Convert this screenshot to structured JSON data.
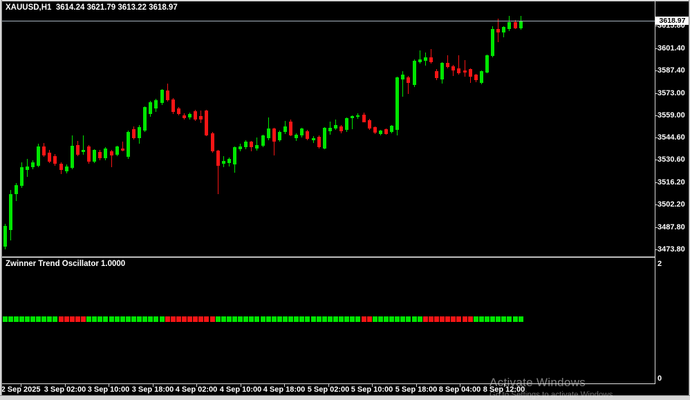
{
  "window": {
    "os_watermark_line1": "Activate Windows",
    "os_watermark_line2": "Go to Settings to activate Windows"
  },
  "chart": {
    "title": "XAUUSD,H1  3614.24 3621.79 3613.22 3618.97"
  },
  "indicator": {
    "label": "Zwinner Trend Oscillator 1.0000"
  },
  "price_axis": {
    "current": "3618.97",
    "labels": [
      "3615.80",
      "3601.40",
      "3587.40",
      "3573.00",
      "3559.00",
      "3544.60",
      "3530.60",
      "3516.20",
      "3502.20",
      "3487.80",
      "3473.80"
    ],
    "sub_top": "2",
    "sub_bottom": "0"
  },
  "time_axis": {
    "labels": [
      "2 Sep 2025",
      "3 Sep 02:00",
      "3 Sep 10:00",
      "3 Sep 18:00",
      "4 Sep 02:00",
      "4 Sep 10:00",
      "4 Sep 18:00",
      "5 Sep 02:00",
      "5 Sep 10:00",
      "5 Sep 18:00",
      "8 Sep 04:00",
      "8 Sep 12:00"
    ]
  },
  "colors": {
    "bull": "#00e600",
    "bear": "#f71515",
    "background": "#000000",
    "text": "#ffffff",
    "price_line": "#a9b6c2",
    "frame": "#d6d6d6",
    "axis_line": "#d9d9d9",
    "price_tag_bg": "#ffffff",
    "price_tag_text": "#000000",
    "watermark": "#868686"
  },
  "chart_data": {
    "type": "candlestick",
    "symbol": "XAUUSD",
    "timeframe": "H1",
    "title": "XAUUSD,H1  3614.24 3621.79 3613.22 3618.97",
    "last_candle": {
      "open": 3614.24,
      "high": 3621.79,
      "low": 3613.22,
      "close": 3618.97
    },
    "y_axis": {
      "tick_labels": [
        3615.8,
        3601.4,
        3587.4,
        3573.0,
        3559.0,
        3544.6,
        3530.6,
        3516.2,
        3502.2,
        3487.8,
        3473.8
      ],
      "current_price": 3618.97
    },
    "x_axis": {
      "tick_labels": [
        "2 Sep 2025",
        "3 Sep 02:00",
        "3 Sep 10:00",
        "3 Sep 18:00",
        "4 Sep 02:00",
        "4 Sep 10:00",
        "4 Sep 18:00",
        "5 Sep 02:00",
        "5 Sep 10:00",
        "5 Sep 18:00",
        "8 Sep 04:00",
        "8 Sep 12:00"
      ]
    },
    "candles": [
      [
        3475.5,
        3490.0,
        3473.9,
        3488.7
      ],
      [
        3486.0,
        3511.5,
        3479.5,
        3509.0
      ],
      [
        3509.0,
        3516.0,
        3504.5,
        3514.5
      ],
      [
        3514.0,
        3529.0,
        3513.0,
        3526.0
      ],
      [
        3524.0,
        3531.0,
        3520.0,
        3526.5
      ],
      [
        3526.0,
        3530.5,
        3524.5,
        3529.0
      ],
      [
        3527.0,
        3541.0,
        3526.0,
        3539.0
      ],
      [
        3539.0,
        3541.5,
        3532.5,
        3533.5
      ],
      [
        3535.0,
        3537.0,
        3528.5,
        3529.5
      ],
      [
        3533.0,
        3534.5,
        3527.0,
        3528.0
      ],
      [
        3528.0,
        3529.0,
        3521.5,
        3524.0
      ],
      [
        3523.5,
        3527.5,
        3522.0,
        3526.5
      ],
      [
        3525.5,
        3546.0,
        3524.5,
        3539.5
      ],
      [
        3540.0,
        3542.5,
        3533.0,
        3534.0
      ],
      [
        3535.5,
        3546.0,
        3534.0,
        3537.0
      ],
      [
        3539.0,
        3540.0,
        3528.0,
        3529.5
      ],
      [
        3529.5,
        3537.5,
        3528.5,
        3537.0
      ],
      [
        3535.5,
        3537.0,
        3530.5,
        3531.5
      ],
      [
        3531.5,
        3538.5,
        3530.5,
        3538.0
      ],
      [
        3536.0,
        3537.0,
        3526.0,
        3533.5
      ],
      [
        3534.0,
        3539.5,
        3533.0,
        3539.0
      ],
      [
        3538.0,
        3542.0,
        3536.0,
        3536.5
      ],
      [
        3532.5,
        3549.0,
        3531.0,
        3548.2
      ],
      [
        3550.0,
        3552.0,
        3543.5,
        3544.5
      ],
      [
        3544.4,
        3552.5,
        3541.0,
        3551.4
      ],
      [
        3549.2,
        3564.5,
        3548.5,
        3563.9
      ],
      [
        3559.5,
        3568.0,
        3558.0,
        3567.0
      ],
      [
        3563.0,
        3569.5,
        3561.0,
        3568.5
      ],
      [
        3566.5,
        3575.5,
        3565.5,
        3575.0
      ],
      [
        3574.5,
        3579.0,
        3567.5,
        3568.5
      ],
      [
        3569.0,
        3570.0,
        3559.5,
        3561.0
      ],
      [
        3563.0,
        3564.0,
        3559.0,
        3559.5
      ],
      [
        3559.0,
        3560.0,
        3556.0,
        3557.0
      ],
      [
        3557.5,
        3560.5,
        3556.0,
        3559.5
      ],
      [
        3561.5,
        3562.5,
        3555.5,
        3556.0
      ],
      [
        3558.4,
        3562.0,
        3554.0,
        3556.0
      ],
      [
        3562.0,
        3562.5,
        3545.5,
        3546.0
      ],
      [
        3547.5,
        3548.5,
        3535.0,
        3536.0
      ],
      [
        3536.5,
        3537.0,
        3509.0,
        3527.0
      ],
      [
        3528.0,
        3533.0,
        3526.0,
        3530.0
      ],
      [
        3528.5,
        3532.0,
        3526.5,
        3531.0
      ],
      [
        3527.5,
        3539.0,
        3522.5,
        3538.5
      ],
      [
        3537.5,
        3541.0,
        3536.0,
        3539.0
      ],
      [
        3538.5,
        3543.0,
        3537.5,
        3542.0
      ],
      [
        3542.0,
        3542.5,
        3536.0,
        3538.5
      ],
      [
        3538.0,
        3545.0,
        3536.5,
        3540.0
      ],
      [
        3539.5,
        3546.5,
        3538.5,
        3546.0
      ],
      [
        3544.5,
        3557.5,
        3543.0,
        3550.5
      ],
      [
        3550.5,
        3551.0,
        3533.5,
        3542.0
      ],
      [
        3543.0,
        3549.0,
        3542.0,
        3548.4
      ],
      [
        3548.4,
        3555.4,
        3547.0,
        3551.9
      ],
      [
        3554.9,
        3556.0,
        3545.5,
        3546.2
      ],
      [
        3544.4,
        3547.5,
        3542.5,
        3546.6
      ],
      [
        3546.2,
        3551.0,
        3545.0,
        3550.5
      ],
      [
        3548.8,
        3549.5,
        3543.0,
        3544.0
      ],
      [
        3543.0,
        3545.5,
        3541.5,
        3544.4
      ],
      [
        3545.3,
        3546.0,
        3538.0,
        3538.7
      ],
      [
        3538.0,
        3551.5,
        3537.5,
        3551.0
      ],
      [
        3548.8,
        3555.0,
        3546.5,
        3551.0
      ],
      [
        3550.5,
        3556.3,
        3549.5,
        3552.7
      ],
      [
        3551.9,
        3552.5,
        3547.5,
        3548.8
      ],
      [
        3549.7,
        3557.5,
        3548.5,
        3557.1
      ],
      [
        3557.0,
        3559.0,
        3550.0,
        3558.4
      ],
      [
        3558.0,
        3560.0,
        3556.5,
        3559.0
      ],
      [
        3559.4,
        3560.5,
        3554.5,
        3554.6
      ],
      [
        3555.9,
        3556.5,
        3549.5,
        3550.5
      ],
      [
        3551.4,
        3552.0,
        3547.0,
        3547.9
      ],
      [
        3547.0,
        3549.5,
        3546.0,
        3549.2
      ],
      [
        3550.0,
        3550.5,
        3546.5,
        3547.0
      ],
      [
        3548.3,
        3552.5,
        3547.5,
        3552.3
      ],
      [
        3549.5,
        3583.5,
        3546.0,
        3582.8
      ],
      [
        3581.5,
        3587.0,
        3570.5,
        3584.5
      ],
      [
        3583.0,
        3584.0,
        3572.5,
        3579.5
      ],
      [
        3578.0,
        3594.5,
        3577.0,
        3593.5
      ],
      [
        3592.5,
        3600.0,
        3591.5,
        3594.5
      ],
      [
        3593.5,
        3598.5,
        3590.5,
        3595.5
      ],
      [
        3595.5,
        3600.9,
        3591.5,
        3592.5
      ],
      [
        3587.0,
        3588.0,
        3581.0,
        3582.5
      ],
      [
        3581.5,
        3592.5,
        3579.0,
        3592.0
      ],
      [
        3592.0,
        3597.0,
        3588.5,
        3589.5
      ],
      [
        3590.0,
        3591.0,
        3583.8,
        3587.5
      ],
      [
        3588.5,
        3597.0,
        3584.5,
        3585.5
      ],
      [
        3587.5,
        3594.0,
        3583.5,
        3586.0
      ],
      [
        3588.0,
        3588.5,
        3579.4,
        3583.5
      ],
      [
        3584.5,
        3585.0,
        3580.0,
        3581.2
      ],
      [
        3579.5,
        3587.5,
        3578.5,
        3586.9
      ],
      [
        3586.0,
        3597.5,
        3585.5,
        3597.0
      ],
      [
        3596.5,
        3615.5,
        3595.5,
        3613.8
      ],
      [
        3613.8,
        3620.2,
        3605.4,
        3611.5
      ],
      [
        3611.5,
        3615.5,
        3608.5,
        3614.9
      ],
      [
        3613.5,
        3621.8,
        3612.5,
        3617.9
      ],
      [
        3617.9,
        3619.5,
        3613.5,
        3614.2
      ],
      [
        3614.24,
        3621.79,
        3613.22,
        3618.97
      ]
    ],
    "oscillator": {
      "name": "Zwinner Trend Oscillator",
      "current_value": "1.0000",
      "scale_min": 0,
      "scale_max": 2,
      "plot_level": 1,
      "color_runs": [
        [
          "green",
          10
        ],
        [
          "red",
          5
        ],
        [
          "green",
          14
        ],
        [
          "red",
          9
        ],
        [
          "green",
          26
        ],
        [
          "red",
          2
        ],
        [
          "green",
          9
        ],
        [
          "red",
          9
        ],
        [
          "green",
          9
        ]
      ]
    }
  }
}
